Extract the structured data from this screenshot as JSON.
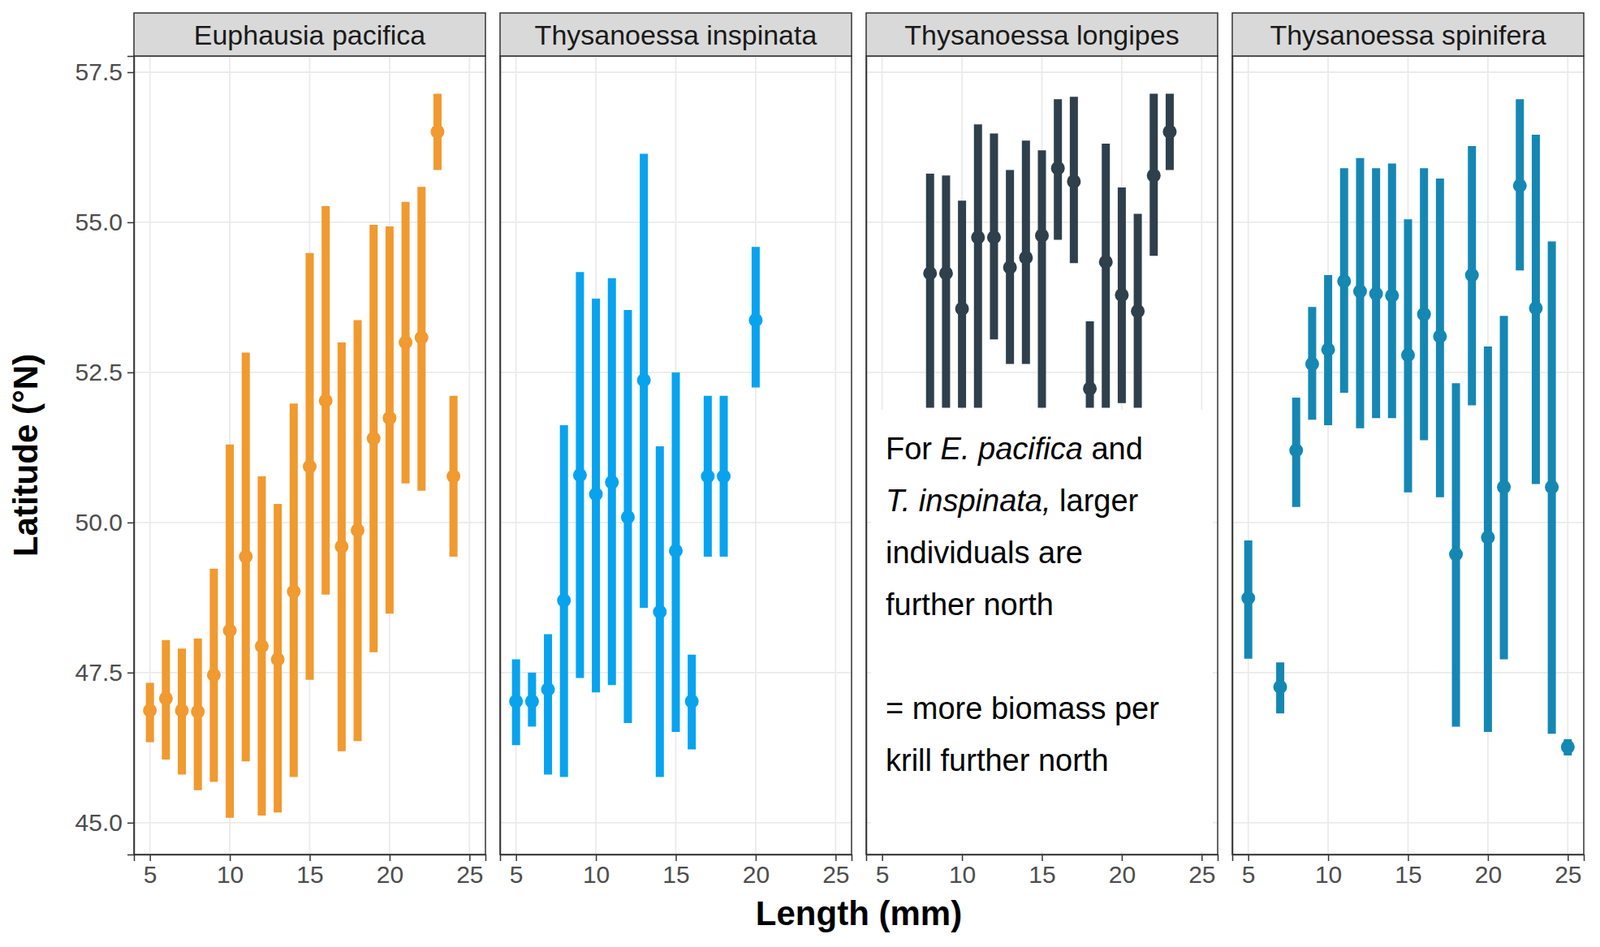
{
  "chart_data": {
    "type": "scatter",
    "x_label": "Length (mm)",
    "y_label": "Latitude (°N)",
    "xlim": [
      4,
      26
    ],
    "ylim": [
      44.47,
      57.77
    ],
    "xticks": [
      5,
      10,
      15,
      20,
      25
    ],
    "yticks": [
      {
        "value": 45,
        "label": "45.0"
      },
      {
        "value": 47.5,
        "label": "47.5"
      },
      {
        "value": 50,
        "label": "50.0"
      },
      {
        "value": 52.5,
        "label": "52.5"
      },
      {
        "value": 55,
        "label": "55.0"
      },
      {
        "value": 57.5,
        "label": "57.5"
      }
    ],
    "grid": true,
    "tick_labels": true,
    "marker": "circle",
    "annotations": [
      "For E. pacifica and T. inspinata, larger individuals are further north",
      "= more biomass per krill further north"
    ],
    "series": [
      {
        "name": "Euphausia pacifica",
        "color": "#f09a2f",
        "x": [
          5,
          6,
          7,
          8,
          9,
          10,
          11,
          12,
          13,
          14,
          15,
          16,
          17,
          18,
          19,
          20,
          21,
          22,
          23,
          24
        ],
        "values": [
          46.87,
          47.07,
          46.87,
          46.85,
          47.46,
          48.2,
          49.43,
          47.94,
          47.72,
          48.85,
          50.93,
          52.03,
          49.6,
          49.87,
          51.4,
          51.74,
          53.0,
          53.08,
          56.51,
          50.77
        ],
        "low": [
          46.34,
          46.05,
          45.8,
          45.54,
          45.68,
          45.08,
          46.02,
          45.12,
          45.17,
          45.76,
          47.38,
          48.8,
          46.19,
          46.36,
          47.84,
          48.48,
          50.65,
          50.53,
          55.87,
          49.43
        ],
        "high": [
          47.33,
          48.04,
          47.9,
          48.07,
          49.23,
          51.3,
          52.83,
          50.77,
          50.31,
          51.98,
          54.49,
          55.27,
          53.0,
          53.37,
          54.96,
          54.93,
          55.34,
          55.59,
          57.14,
          52.11
        ]
      },
      {
        "name": "Thysanoessa inspinata",
        "color": "#08a3ef",
        "x": [
          5,
          6,
          7,
          8,
          9,
          10,
          11,
          12,
          13,
          14,
          15,
          16,
          17,
          18,
          20
        ],
        "values": [
          47.02,
          47.02,
          47.22,
          48.7,
          50.79,
          50.47,
          50.67,
          50.09,
          52.37,
          48.51,
          49.53,
          47.02,
          50.77,
          50.77,
          53.37
        ],
        "low": [
          46.29,
          46.6,
          45.8,
          45.76,
          47.41,
          47.17,
          47.29,
          46.66,
          48.58,
          45.76,
          46.51,
          46.22,
          49.43,
          49.43,
          52.25
        ],
        "high": [
          47.72,
          47.5,
          48.14,
          51.62,
          54.17,
          53.73,
          54.07,
          53.54,
          56.14,
          51.27,
          52.5,
          47.8,
          52.11,
          52.11,
          54.59
        ]
      },
      {
        "name": "Thysanoessa longipes",
        "color": "#2f3f4c",
        "x": [
          8,
          9,
          10,
          11,
          12,
          13,
          14,
          15,
          16,
          17,
          18,
          19,
          20,
          21,
          22,
          23
        ],
        "values": [
          54.15,
          54.15,
          53.56,
          54.75,
          54.75,
          54.25,
          54.41,
          54.78,
          55.9,
          55.68,
          52.23,
          54.34,
          53.79,
          53.52,
          55.78,
          56.51
        ],
        "low": [
          51.91,
          51.91,
          51.91,
          51.91,
          53.05,
          52.64,
          52.64,
          51.91,
          54.71,
          54.32,
          51.91,
          51.91,
          51.99,
          51.91,
          54.44,
          55.87
        ],
        "high": [
          55.81,
          55.78,
          55.36,
          56.63,
          56.48,
          55.87,
          56.36,
          56.2,
          57.05,
          57.09,
          53.35,
          56.31,
          55.58,
          55.14,
          57.14,
          57.14
        ]
      },
      {
        "name": "Thysanoessa spinifera",
        "color": "#1488b3",
        "x": [
          5,
          7,
          8,
          9,
          10,
          11,
          12,
          13,
          14,
          15,
          16,
          17,
          18,
          19,
          20,
          21,
          22,
          23,
          24,
          25
        ],
        "values": [
          48.74,
          47.26,
          51.2,
          52.64,
          52.88,
          54.02,
          53.85,
          53.81,
          53.78,
          52.79,
          53.47,
          53.1,
          49.47,
          54.12,
          49.75,
          50.59,
          55.61,
          53.57,
          50.59,
          46.26
        ],
        "low": [
          47.73,
          46.82,
          50.26,
          51.71,
          51.62,
          52.16,
          51.57,
          51.74,
          51.74,
          50.5,
          51.37,
          50.42,
          46.6,
          51.95,
          46.51,
          47.72,
          54.2,
          50.64,
          46.48,
          46.12
        ],
        "high": [
          49.7,
          47.67,
          52.08,
          53.59,
          54.12,
          55.9,
          56.07,
          55.9,
          55.98,
          55.05,
          55.9,
          55.73,
          52.32,
          56.27,
          52.93,
          53.44,
          57.05,
          56.46,
          54.68,
          46.39
        ]
      }
    ]
  }
}
